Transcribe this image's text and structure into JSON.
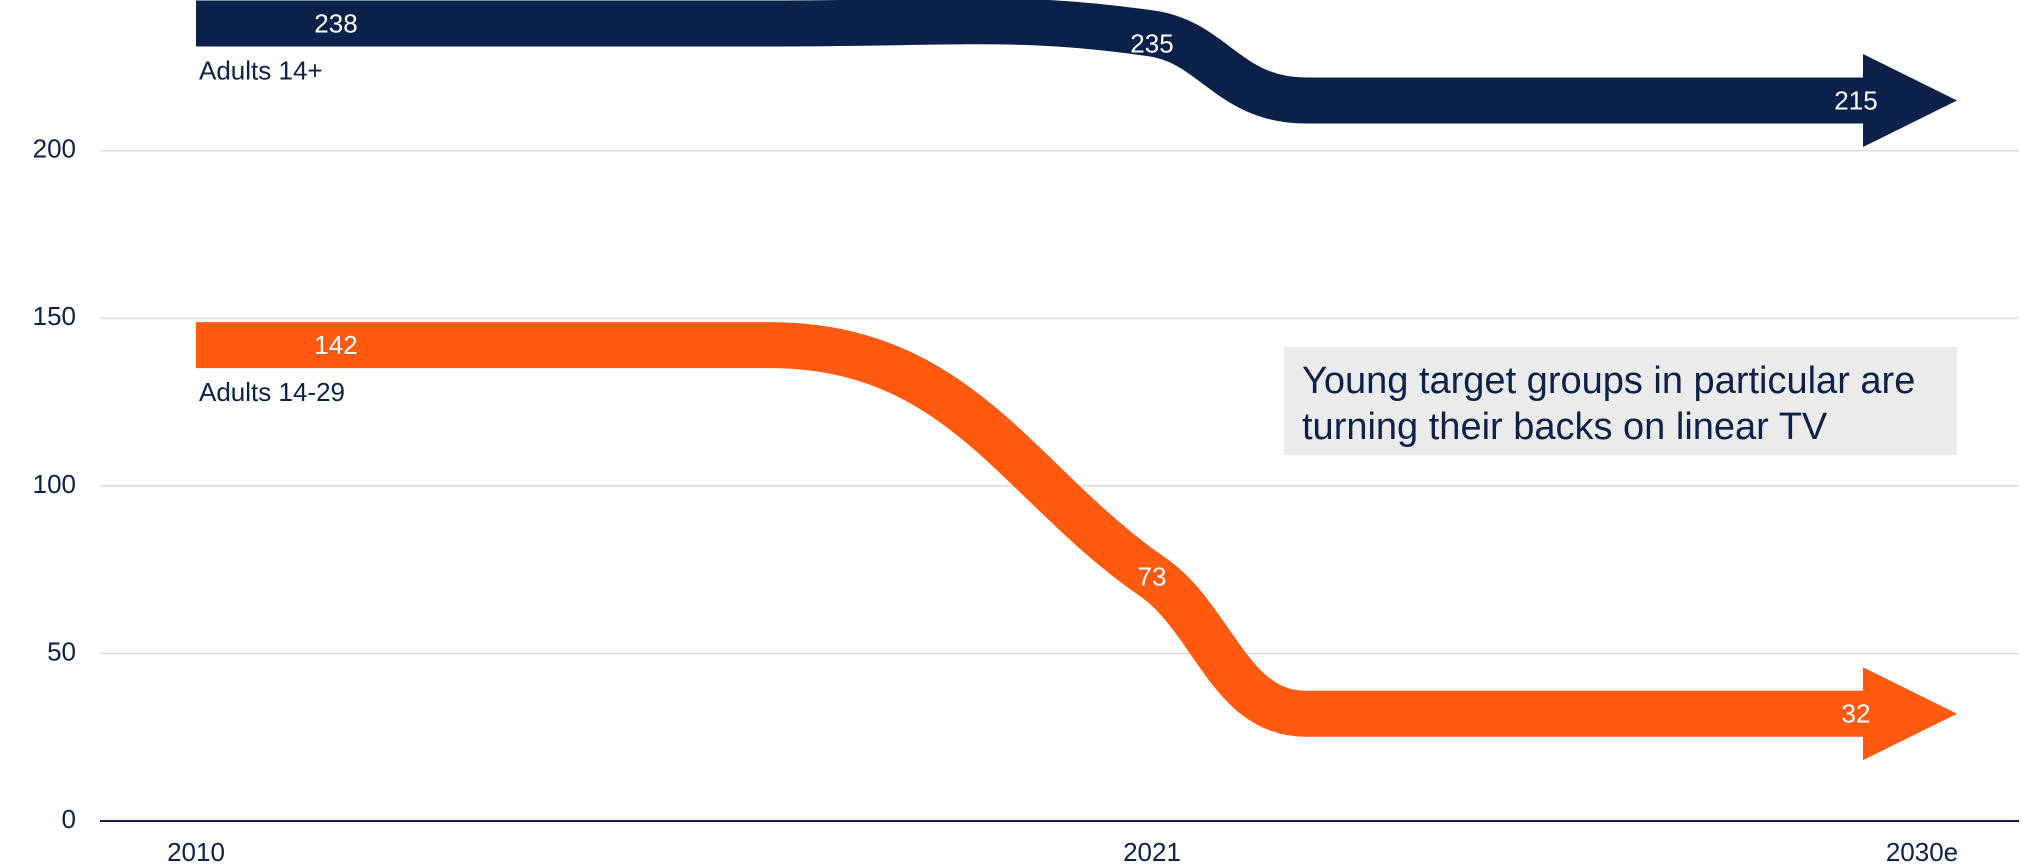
{
  "chart_data": {
    "type": "line",
    "categories": [
      "2010",
      "2021",
      "2030e"
    ],
    "series": [
      {
        "name": "Adults 14+",
        "color": "#0c2149",
        "values": [
          238,
          235,
          215
        ]
      },
      {
        "name": "Adults 14-29",
        "color": "#ff5a0f",
        "values": [
          142,
          73,
          32
        ]
      }
    ],
    "ylim": [
      0,
      245
    ],
    "yticks": [
      0,
      50,
      100,
      150,
      200
    ],
    "grid": true,
    "annotation": "Young target groups in particular are turning their backs on linear TV"
  }
}
